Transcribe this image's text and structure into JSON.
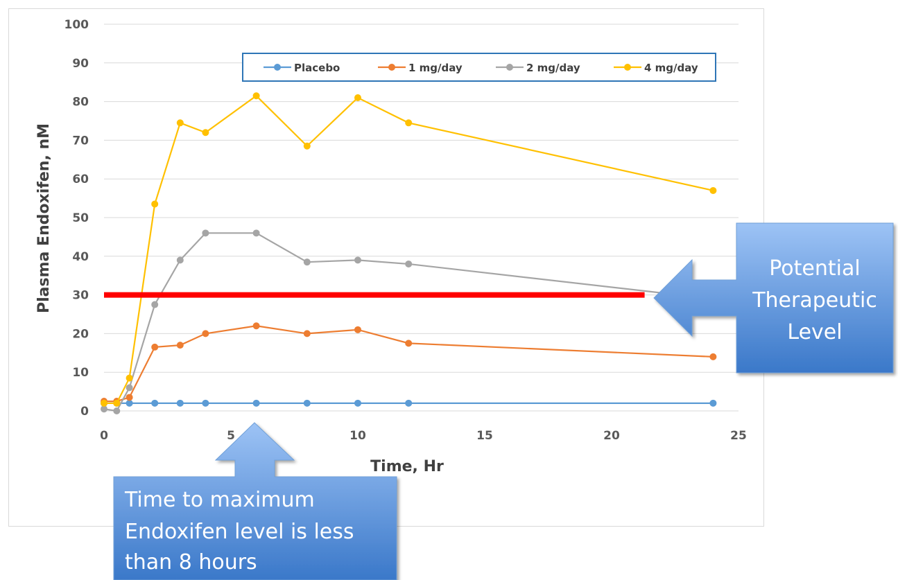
{
  "chart_data": {
    "type": "line",
    "title": "",
    "xlabel": "Time, Hr",
    "ylabel": "Plasma Endoxifen, nM",
    "xlim": [
      0,
      25
    ],
    "ylim": [
      0,
      100
    ],
    "xticks": [
      0,
      5,
      10,
      15,
      20,
      25
    ],
    "yticks": [
      0,
      10,
      20,
      30,
      40,
      50,
      60,
      70,
      80,
      90,
      100
    ],
    "grid": "horizontal",
    "legend_position": "top-right",
    "x": [
      0,
      0.5,
      1,
      2,
      3,
      4,
      6,
      8,
      10,
      12,
      24
    ],
    "series": [
      {
        "name": "Placebo",
        "color": "#5b9bd5",
        "values": [
          2,
          2,
          2,
          2,
          2,
          2,
          2,
          2,
          2,
          2,
          2
        ]
      },
      {
        "name": "1 mg/day",
        "color": "#ed7d31",
        "values": [
          2.5,
          2.5,
          3.5,
          16.5,
          17,
          20,
          22,
          20,
          21,
          17.5,
          14
        ]
      },
      {
        "name": "2 mg/day",
        "color": "#a5a5a5",
        "values": [
          0.5,
          0,
          6,
          27.5,
          39,
          46,
          46,
          38.5,
          39,
          38,
          29
        ]
      },
      {
        "name": "4 mg/day",
        "color": "#ffc000",
        "values": [
          2,
          2,
          8.5,
          53.5,
          74.5,
          72,
          81.5,
          68.5,
          81,
          74.5,
          57
        ]
      }
    ],
    "reference_line": {
      "y": 30,
      "x_end": 21.3,
      "color": "#ff0000"
    }
  },
  "callouts": {
    "therapeutic": {
      "lines": [
        "Potential",
        "Therapeutic",
        "Level"
      ]
    },
    "tmax": {
      "lines": [
        "Time to maximum",
        "Endoxifen level is less",
        "than 8 hours"
      ]
    }
  }
}
